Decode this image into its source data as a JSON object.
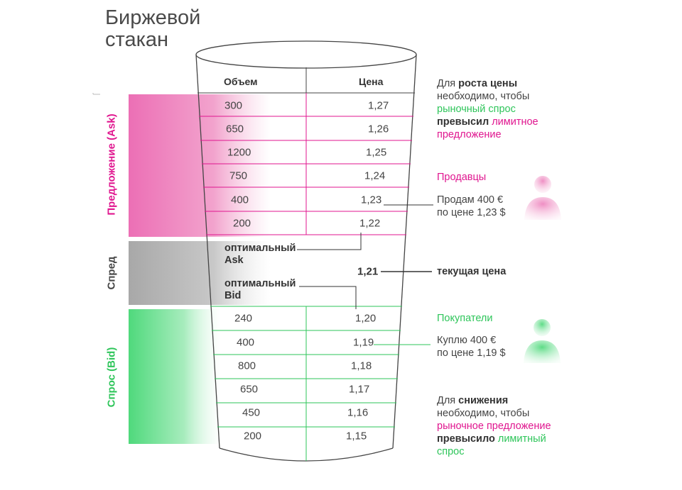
{
  "title": {
    "line1": "Биржевой",
    "line2": "стакан"
  },
  "colors": {
    "ask": "#e0168f",
    "bid": "#2ec55a",
    "spread": "#9e9e9e",
    "ink": "#333333"
  },
  "headers": {
    "volume": "Объем",
    "price": "Цена"
  },
  "side_labels": {
    "ask": "Предложение (Ask)",
    "spread": "Спред",
    "bid": "Спрос (Bid)"
  },
  "asks": [
    {
      "volume": "300",
      "price": "1,27"
    },
    {
      "volume": "650",
      "price": "1,26"
    },
    {
      "volume": "1200",
      "price": "1,25"
    },
    {
      "volume": "750",
      "price": "1,24"
    },
    {
      "volume": "400",
      "price": "1,23"
    },
    {
      "volume": "200",
      "price": "1,22"
    }
  ],
  "bids": [
    {
      "volume": "240",
      "price": "1,20"
    },
    {
      "volume": "400",
      "price": "1,19"
    },
    {
      "volume": "800",
      "price": "1,18"
    },
    {
      "volume": "650",
      "price": "1,17"
    },
    {
      "volume": "450",
      "price": "1,16"
    },
    {
      "volume": "200",
      "price": "1,15"
    }
  ],
  "spread": {
    "best_ask_l1": "оптимальный",
    "best_ask_l2": "Ask",
    "current_price": "1,21",
    "best_bid_l1": "оптимальный",
    "best_bid_l2": "Bid"
  },
  "notes": {
    "rise": {
      "l1_a": "Для ",
      "l1_b": "роста цены",
      "l2": "необходимо, чтобы",
      "l3": "рыночный спрос",
      "l4_a": "превысил",
      "l4_b": " лимитное",
      "l5": "предложение"
    },
    "sellers": "Продавцы",
    "sell_order_l1": "Продам 400 €",
    "sell_order_l2": "по цене 1,23 $",
    "current_price": "текущая цена",
    "buyers": "Покупатели",
    "buy_order_l1": "Куплю 400 €",
    "buy_order_l2": "по цене 1,19 $",
    "fall": {
      "l1_a": "Для ",
      "l1_b": "снижения",
      "l2": "необходимо, чтобы",
      "l3": "рыночное предложение",
      "l4_a": "превысило",
      "l4_b": " лимитный",
      "l5": "спрос"
    }
  },
  "icons": {
    "seller": "person-icon",
    "buyer": "person-icon"
  }
}
